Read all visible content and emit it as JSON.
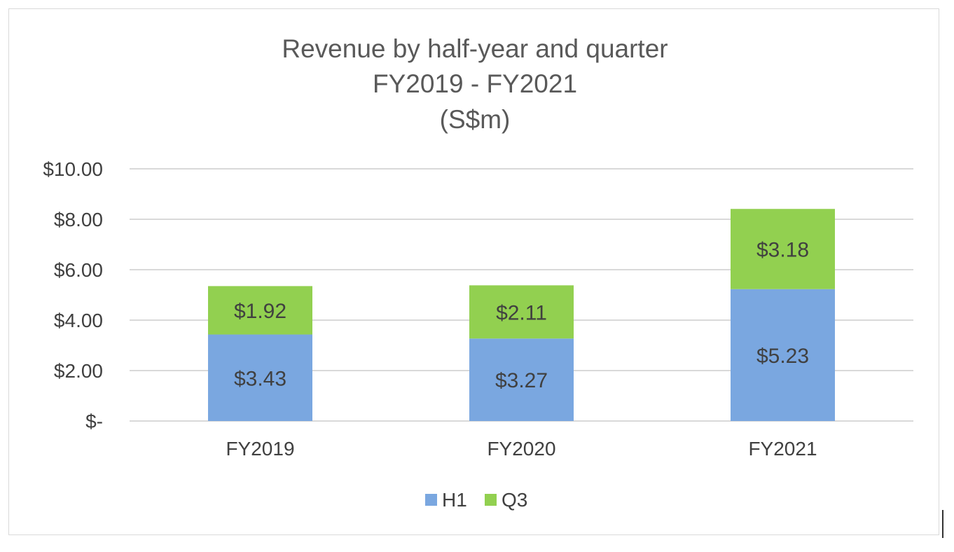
{
  "chart_data": {
    "type": "bar",
    "stacked": true,
    "title": [
      "Revenue by half-year and quarter",
      "FY2019 - FY2021",
      "(S$m)"
    ],
    "categories": [
      "FY2019",
      "FY2020",
      "FY2021"
    ],
    "series": [
      {
        "name": "H1",
        "color": "#7aa7e0",
        "values": [
          3.43,
          3.27,
          5.23
        ],
        "labels": [
          "$3.43",
          "$3.27",
          "$5.23"
        ]
      },
      {
        "name": "Q3",
        "color": "#92d050",
        "values": [
          1.92,
          2.11,
          3.18
        ],
        "labels": [
          "$1.92",
          "$2.11",
          "$3.18"
        ]
      }
    ],
    "ylim": [
      0,
      10
    ],
    "yticks": [
      0,
      2,
      4,
      6,
      8,
      10
    ],
    "ytick_labels": [
      "$-",
      "$2.00",
      "$4.00",
      "$6.00",
      "$8.00",
      "$10.00"
    ],
    "grid": true,
    "gridline_color": "#d9d9d9",
    "legend": "bottom"
  }
}
